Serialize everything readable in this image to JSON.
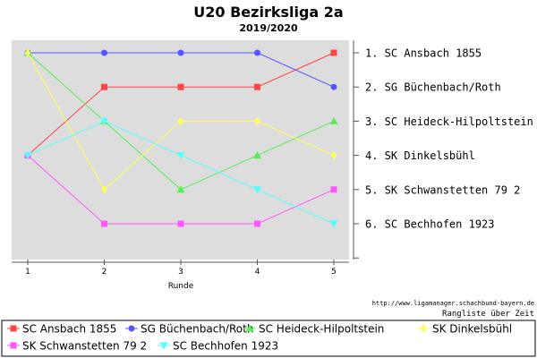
{
  "chart_data": {
    "type": "line",
    "title": "U20 Bezirksliga 2a",
    "subtitle": "2019/2020",
    "xlabel": "Runde",
    "ylabel": "",
    "x": [
      1,
      2,
      3,
      4,
      5
    ],
    "ylim": [
      0.5,
      7
    ],
    "y_inverted": true,
    "grid": false,
    "legend_position": "bottom",
    "series": [
      {
        "name": "SC Ansbach 1855",
        "color": "#ff4444",
        "marker": "square",
        "values": [
          4,
          2,
          2,
          2,
          1
        ]
      },
      {
        "name": "SG Büchenbach/Roth",
        "color": "#5555ff",
        "marker": "circle",
        "values": [
          1,
          1,
          1,
          1,
          2
        ]
      },
      {
        "name": "SC Heideck-Hilpoltstein",
        "color": "#55ee55",
        "marker": "triangle-up",
        "values": [
          1,
          3,
          5,
          4,
          3
        ]
      },
      {
        "name": "SK Dinkelsbühl",
        "color": "#ffff55",
        "marker": "diamond",
        "values": [
          1,
          5,
          3,
          3,
          4
        ]
      },
      {
        "name": "SK Schwanstetten 79 2",
        "color": "#ff55ff",
        "marker": "square",
        "values": [
          4,
          6,
          6,
          6,
          5
        ]
      },
      {
        "name": "SC Bechhofen 1923",
        "color": "#55ffff",
        "marker": "triangle-down",
        "values": [
          4,
          3,
          4,
          5,
          6
        ]
      }
    ],
    "right_axis_labels": [
      "1. SC Ansbach 1855",
      "2. SG Büchenbach/Roth",
      "3. SC Heideck-Hilpoltstein",
      "4. SK Dinkelsbühl",
      "5. SK Schwanstetten 79 2",
      "6. SC Bechhofen 1923"
    ],
    "source_text": "http://www.ligamanager.schachbund-bayern.de",
    "caption": "Rangliste über Zeit",
    "plot_background": "#dddddd"
  }
}
